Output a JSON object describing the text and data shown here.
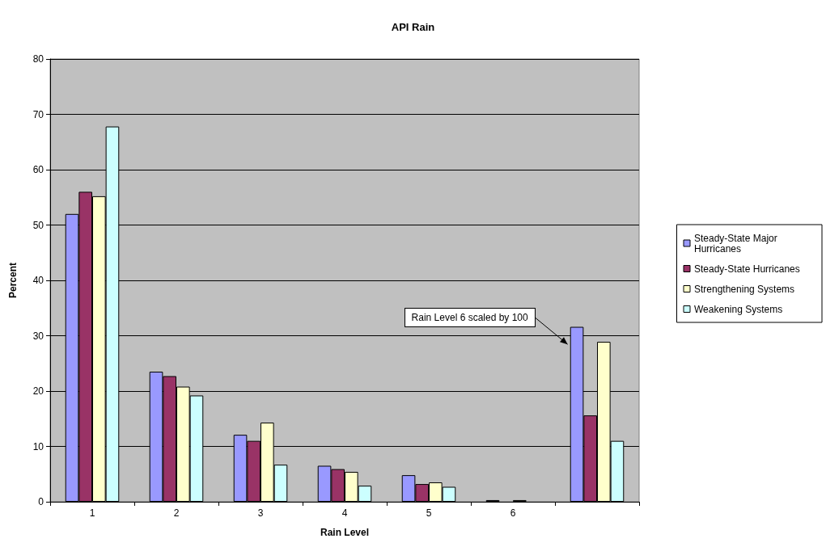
{
  "chart_data": {
    "type": "bar",
    "title": "API Rain",
    "xlabel": "Rain Level",
    "ylabel": "Percent",
    "categories": [
      "1",
      "2",
      "3",
      "4",
      "5",
      "6",
      null
    ],
    "series": [
      {
        "name": "Steady-State Major Hurricanes",
        "color": "#9999ff",
        "values": [
          52,
          23.5,
          12.1,
          6.5,
          4.8,
          0.3,
          31.6
        ]
      },
      {
        "name": "Steady-State Hurricanes",
        "color": "#993366",
        "values": [
          56,
          22.7,
          11,
          5.9,
          3.2,
          null,
          15.6
        ]
      },
      {
        "name": "Strengthening Systems",
        "color": "#ffffcc",
        "values": [
          55.2,
          20.8,
          14.3,
          5.4,
          3.5,
          0.3,
          28.9
        ]
      },
      {
        "name": "Weakening Systems",
        "color": "#ccffff",
        "values": [
          67.8,
          19.2,
          6.7,
          2.9,
          2.7,
          null,
          11
        ]
      }
    ],
    "ylim": [
      0,
      80
    ],
    "yticks": [
      0,
      10,
      20,
      30,
      40,
      50,
      60,
      70,
      80
    ],
    "grid": "y",
    "legend": "right",
    "annotations": [
      "Rain Level 6 scaled by 100"
    ]
  }
}
